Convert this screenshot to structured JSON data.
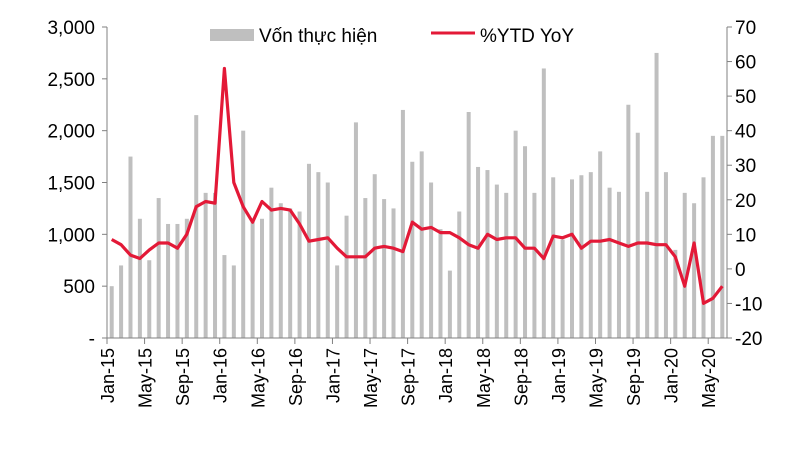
{
  "chart_data": {
    "type": "bar+line",
    "title": "",
    "legend_placement": "top",
    "grid": false,
    "colors": {
      "bars": "#bfbfbf",
      "line": "#e31937"
    },
    "x_tick_labels": [
      "Jan-15",
      "May-15",
      "Sep-15",
      "Jan-16",
      "May-16",
      "Sep-16",
      "Jan-17",
      "May-17",
      "Sep-17",
      "Jan-18",
      "May-18",
      "Sep-18",
      "Jan-19",
      "May-19",
      "Sep-19",
      "Jan-20",
      "May-20"
    ],
    "x_start": "Jan-15",
    "x_end": "Jun-20",
    "left_axis": {
      "range": [
        0,
        3000
      ],
      "ticks": [
        "-",
        "500",
        "1,000",
        "1,500",
        "2,000",
        "2,500",
        "3,000"
      ],
      "tick_values": [
        0,
        500,
        1000,
        1500,
        2000,
        2500,
        3000
      ]
    },
    "right_axis": {
      "range": [
        -20,
        70
      ],
      "ticks": [
        "-20",
        "-10",
        "0",
        "10",
        "20",
        "30",
        "40",
        "50",
        "60",
        "70"
      ],
      "tick_values": [
        -20,
        -10,
        0,
        10,
        20,
        30,
        40,
        50,
        60,
        70
      ]
    },
    "series": [
      {
        "name": "Vốn thực hiện",
        "type": "bar",
        "axis": "left",
        "values": [
          500,
          700,
          1750,
          1150,
          750,
          1350,
          1100,
          1100,
          1150,
          2150,
          1400,
          1400,
          800,
          700,
          2000,
          1150,
          1150,
          1450,
          1300,
          1250,
          1220,
          1680,
          1600,
          1500,
          700,
          1180,
          2080,
          1350,
          1580,
          1340,
          1250,
          2200,
          1700,
          1800,
          1500,
          1050,
          650,
          1220,
          2180,
          1650,
          1620,
          1480,
          1400,
          2000,
          1850,
          1400,
          2600,
          1550,
          950,
          1530,
          1570,
          1600,
          1800,
          1450,
          1410,
          2250,
          1980,
          1410,
          2750,
          1600,
          850,
          1400,
          1300,
          1550,
          1950,
          1950
        ]
      },
      {
        "name": "%YTD YoY",
        "type": "line",
        "axis": "right",
        "values": [
          8.5,
          7,
          4,
          3,
          5.5,
          7.5,
          7.5,
          6,
          10,
          18,
          19.5,
          19,
          58,
          25,
          18,
          13.5,
          19.5,
          17,
          17.5,
          17,
          13,
          8,
          8.5,
          9,
          6,
          3.5,
          3.5,
          3.5,
          6,
          6.5,
          6,
          5,
          13.5,
          11.5,
          12,
          10.5,
          10.5,
          9,
          7,
          6,
          10,
          8.5,
          9,
          9,
          6,
          6,
          3,
          9.5,
          9,
          10,
          6,
          8,
          8,
          8.5,
          7.5,
          6.5,
          7.5,
          7.5,
          7,
          7,
          3.5,
          -5,
          7.5,
          -10,
          -8.5,
          -5
        ]
      }
    ]
  }
}
